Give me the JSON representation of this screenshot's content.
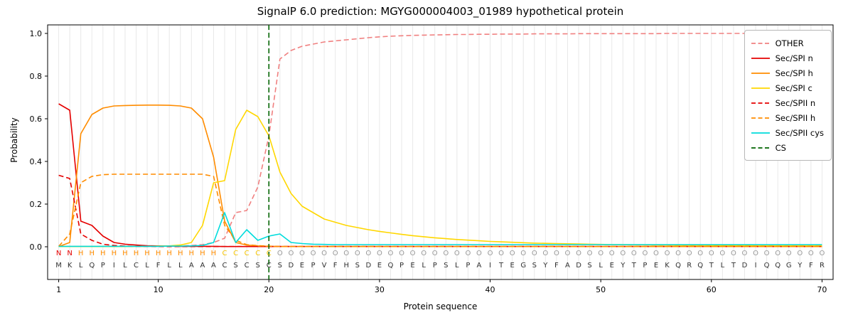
{
  "chart_data": {
    "type": "line",
    "title": "SignalP 6.0 prediction: MGYG000004003_01989 hypothetical protein",
    "xlabel": "Protein sequence",
    "ylabel": "Probability",
    "xticks": [
      1,
      10,
      20,
      30,
      40,
      50,
      60,
      70
    ],
    "yticks": [
      0.0,
      0.2,
      0.4,
      0.6,
      0.8,
      1.0
    ],
    "xlim": [
      0,
      71
    ],
    "ylim": [
      -0.15,
      1.04
    ],
    "grid": "vertical line per residue",
    "grid_color": "#e8e8e8",
    "legend_position": "upper right",
    "sequence": "MKLQPILCLFLLAAACSCSCSDEPVFHSDEQPELPSLPAITEGSYFADSLEYTPEKQRQTLTDIQQGYFR",
    "region_labels": "NNHHHHHHHHHHHHHCCCCCOOOOOOOOOOOOOOOOOOOOOOOOOOOOOOOOOOOOOOOOOOOOOOOOOO",
    "region_colors": {
      "N": "#e50000",
      "H": "#ff8c00",
      "C": "#f5c400",
      "O": "#999999"
    },
    "sequence_color": "#333333",
    "cs": {
      "name": "CS",
      "x": 20,
      "color": "#006400",
      "dash": true
    },
    "series": [
      {
        "name": "OTHER",
        "color": "#f08080",
        "dash": true,
        "values": [
          0.001,
          0.001,
          0.001,
          0.001,
          0.001,
          0.001,
          0.001,
          0.002,
          0.002,
          0.002,
          0.003,
          0.004,
          0.006,
          0.01,
          0.02,
          0.04,
          0.16,
          0.17,
          0.28,
          0.52,
          0.88,
          0.92,
          0.94,
          0.95,
          0.96,
          0.965,
          0.97,
          0.975,
          0.98,
          0.984,
          0.987,
          0.989,
          0.991,
          0.992,
          0.993,
          0.994,
          0.995,
          0.995,
          0.996,
          0.996,
          0.997,
          0.997,
          0.997,
          0.998,
          0.998,
          0.998,
          0.998,
          0.999,
          0.999,
          0.999,
          0.999,
          0.999,
          0.999,
          0.999,
          0.999,
          1.0,
          1.0,
          1.0,
          1.0,
          1.0,
          1.0,
          1.0,
          1.0,
          1.0,
          1.0,
          1.0,
          1.0,
          1.0,
          1.0,
          1.0
        ]
      },
      {
        "name": "Sec/SPI n",
        "color": "#e50000",
        "dash": false,
        "values": [
          0.67,
          0.64,
          0.12,
          0.1,
          0.05,
          0.02,
          0.012,
          0.008,
          0.005,
          0.004,
          0.003,
          0.002,
          0.002,
          0.002,
          0.002,
          0.001,
          0.001,
          0.001,
          0.001,
          0.001,
          0.001,
          0.001,
          0.001,
          0.001,
          0.001,
          0.001,
          0.001,
          0.001,
          0.001,
          0.001,
          0.001,
          0.001,
          0.001,
          0.001,
          0.001,
          0.001,
          0.001,
          0.001,
          0.001,
          0.001,
          0.001,
          0.001,
          0.001,
          0.001,
          0.001,
          0.001,
          0.001,
          0.001,
          0.001,
          0.001,
          0.001,
          0.001,
          0.001,
          0.001,
          0.001,
          0.001,
          0.001,
          0.001,
          0.001,
          0.001,
          0.001,
          0.001,
          0.001,
          0.001,
          0.001,
          0.001,
          0.001,
          0.001,
          0.001,
          0.001
        ]
      },
      {
        "name": "Sec/SPI h",
        "color": "#ff8c00",
        "dash": false,
        "values": [
          0.001,
          0.02,
          0.53,
          0.62,
          0.65,
          0.66,
          0.662,
          0.663,
          0.664,
          0.664,
          0.663,
          0.66,
          0.65,
          0.6,
          0.42,
          0.12,
          0.02,
          0.008,
          0.004,
          0.002,
          0.001,
          0.001,
          0.001,
          0.001,
          0.001,
          0.001,
          0.001,
          0.001,
          0.001,
          0.001,
          0.001,
          0.001,
          0.001,
          0.001,
          0.001,
          0.001,
          0.001,
          0.001,
          0.001,
          0.001,
          0.001,
          0.001,
          0.001,
          0.001,
          0.001,
          0.001,
          0.001,
          0.001,
          0.001,
          0.001,
          0.001,
          0.001,
          0.001,
          0.001,
          0.001,
          0.001,
          0.001,
          0.001,
          0.001,
          0.001,
          0.001,
          0.001,
          0.001,
          0.001,
          0.001,
          0.001,
          0.001,
          0.001,
          0.001,
          0.001
        ]
      },
      {
        "name": "Sec/SPI c",
        "color": "#ffd700",
        "dash": false,
        "values": [
          0.001,
          0.001,
          0.001,
          0.001,
          0.001,
          0.001,
          0.001,
          0.002,
          0.002,
          0.003,
          0.004,
          0.008,
          0.02,
          0.1,
          0.3,
          0.31,
          0.55,
          0.64,
          0.61,
          0.52,
          0.35,
          0.25,
          0.19,
          0.16,
          0.13,
          0.115,
          0.1,
          0.09,
          0.08,
          0.072,
          0.065,
          0.058,
          0.052,
          0.047,
          0.042,
          0.038,
          0.034,
          0.031,
          0.028,
          0.025,
          0.023,
          0.021,
          0.019,
          0.017,
          0.016,
          0.015,
          0.014,
          0.013,
          0.012,
          0.011,
          0.01,
          0.01,
          0.009,
          0.009,
          0.008,
          0.008,
          0.007,
          0.007,
          0.007,
          0.006,
          0.006,
          0.006,
          0.006,
          0.005,
          0.005,
          0.005,
          0.005,
          0.005,
          0.005,
          0.005
        ]
      },
      {
        "name": "Sec/SPII n",
        "color": "#e50000",
        "dash": true,
        "values": [
          0.335,
          0.32,
          0.06,
          0.03,
          0.012,
          0.006,
          0.003,
          0.002,
          0.002,
          0.001,
          0.001,
          0.001,
          0.001,
          0.001,
          0.001,
          0.001,
          0.001,
          0.001,
          0.001,
          0.001,
          0.001,
          0.001,
          0.001,
          0.001,
          0.001,
          0.001,
          0.001,
          0.001,
          0.001,
          0.001,
          0.001,
          0.001,
          0.001,
          0.001,
          0.001,
          0.001,
          0.001,
          0.001,
          0.001,
          0.001,
          0.001,
          0.001,
          0.001,
          0.001,
          0.001,
          0.001,
          0.001,
          0.001,
          0.001,
          0.001,
          0.001,
          0.001,
          0.001,
          0.001,
          0.001,
          0.001,
          0.001,
          0.001,
          0.001,
          0.001,
          0.001,
          0.001,
          0.001,
          0.001,
          0.001,
          0.001,
          0.001,
          0.001,
          0.001,
          0.001
        ]
      },
      {
        "name": "Sec/SPII h",
        "color": "#ff8c00",
        "dash": true,
        "values": [
          0.002,
          0.06,
          0.3,
          0.33,
          0.338,
          0.34,
          0.34,
          0.34,
          0.34,
          0.34,
          0.34,
          0.34,
          0.34,
          0.34,
          0.33,
          0.1,
          0.03,
          0.01,
          0.005,
          0.003,
          0.001,
          0.001,
          0.001,
          0.001,
          0.001,
          0.001,
          0.001,
          0.001,
          0.001,
          0.001,
          0.001,
          0.001,
          0.001,
          0.001,
          0.001,
          0.001,
          0.001,
          0.001,
          0.001,
          0.001,
          0.001,
          0.001,
          0.001,
          0.001,
          0.001,
          0.001,
          0.001,
          0.001,
          0.001,
          0.001,
          0.001,
          0.001,
          0.001,
          0.001,
          0.001,
          0.001,
          0.001,
          0.001,
          0.001,
          0.001,
          0.001,
          0.001,
          0.001,
          0.001,
          0.001,
          0.001,
          0.001,
          0.001,
          0.001,
          0.001
        ]
      },
      {
        "name": "Sec/SPII cys",
        "color": "#00dcdc",
        "dash": false,
        "values": [
          0.002,
          0.002,
          0.002,
          0.002,
          0.002,
          0.002,
          0.002,
          0.002,
          0.002,
          0.002,
          0.003,
          0.003,
          0.004,
          0.006,
          0.02,
          0.16,
          0.02,
          0.08,
          0.03,
          0.05,
          0.06,
          0.02,
          0.015,
          0.012,
          0.011,
          0.01,
          0.01,
          0.01,
          0.01,
          0.01,
          0.01,
          0.01,
          0.01,
          0.01,
          0.01,
          0.01,
          0.01,
          0.01,
          0.01,
          0.01,
          0.01,
          0.01,
          0.01,
          0.01,
          0.01,
          0.01,
          0.01,
          0.01,
          0.01,
          0.01,
          0.01,
          0.01,
          0.01,
          0.01,
          0.01,
          0.01,
          0.01,
          0.01,
          0.01,
          0.01,
          0.01,
          0.01,
          0.01,
          0.01,
          0.01,
          0.01,
          0.01,
          0.01,
          0.01,
          0.01
        ]
      }
    ]
  }
}
